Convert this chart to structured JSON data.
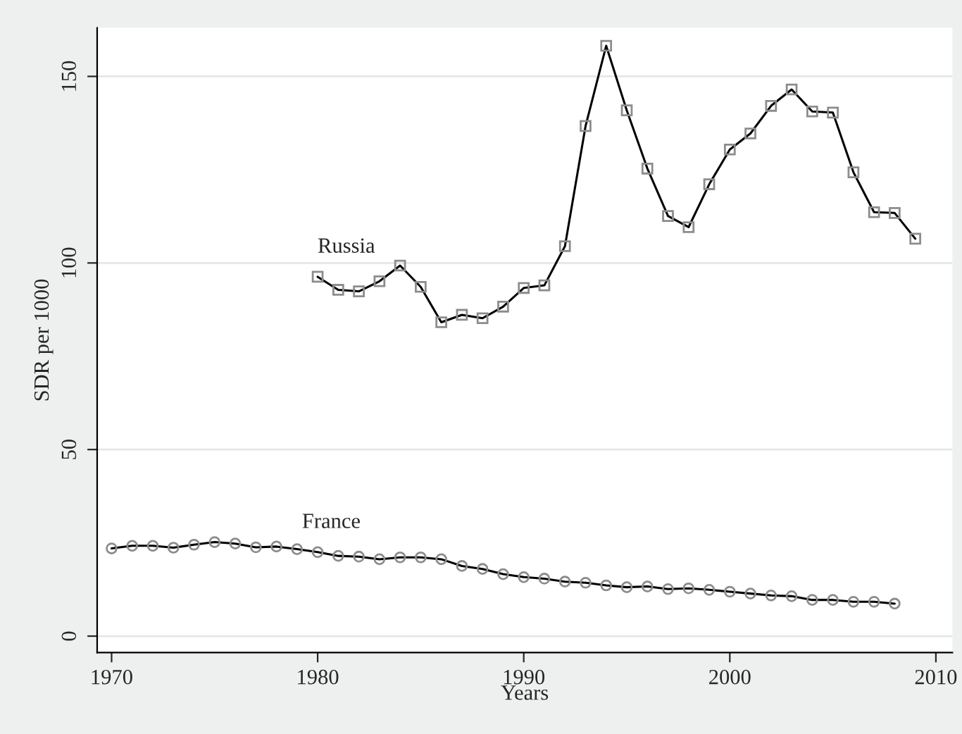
{
  "chart_data": {
    "type": "line",
    "xlabel": "Years",
    "ylabel": "SDR per 1000",
    "series": [
      {
        "name": "Russia",
        "color": "#000000",
        "marker": "square",
        "x": [
          1980,
          1981,
          1982,
          1983,
          1984,
          1985,
          1986,
          1987,
          1988,
          1989,
          1990,
          1991,
          1992,
          1993,
          1994,
          1995,
          1996,
          1997,
          1998,
          1999,
          2000,
          2001,
          2002,
          2003,
          2004,
          2005,
          2006,
          2007,
          2008,
          2009
        ],
        "values": [
          96.3,
          92.8,
          92.4,
          95.1,
          99.3,
          93.6,
          84.1,
          86.1,
          85.2,
          88.3,
          93.3,
          94.0,
          104.5,
          136.7,
          158.2,
          140.9,
          125.3,
          112.6,
          109.6,
          121.1,
          130.4,
          134.7,
          142.1,
          146.5,
          140.6,
          140.3,
          124.3,
          113.6,
          113.4,
          106.5
        ]
      },
      {
        "name": "France",
        "color": "#000000",
        "marker": "circle",
        "x": [
          1970,
          1971,
          1972,
          1973,
          1974,
          1975,
          1976,
          1977,
          1978,
          1979,
          1980,
          1981,
          1982,
          1983,
          1984,
          1985,
          1986,
          1987,
          1988,
          1989,
          1990,
          1991,
          1992,
          1993,
          1994,
          1995,
          1996,
          1997,
          1998,
          1999,
          2000,
          2001,
          2002,
          2003,
          2004,
          2005,
          2006,
          2007,
          2008
        ],
        "values": [
          23.5,
          24.2,
          24.2,
          23.7,
          24.5,
          25.2,
          24.8,
          23.8,
          24.0,
          23.3,
          22.5,
          21.5,
          21.3,
          20.6,
          21.1,
          21.1,
          20.6,
          18.8,
          18.0,
          16.6,
          15.8,
          15.4,
          14.6,
          14.3,
          13.6,
          13.1,
          13.3,
          12.6,
          12.8,
          12.4,
          11.9,
          11.4,
          10.9,
          10.7,
          9.7,
          9.7,
          9.2,
          9.2,
          8.7
        ]
      }
    ],
    "xlim": [
      1969.3,
      2010.8
    ],
    "ylim": [
      -4.4,
      163
    ],
    "xticks": [
      1970,
      1980,
      1990,
      2000,
      2010
    ],
    "yticks": [
      0,
      50,
      100,
      150
    ],
    "grid": "y",
    "legend": false,
    "line_style": "solid"
  }
}
